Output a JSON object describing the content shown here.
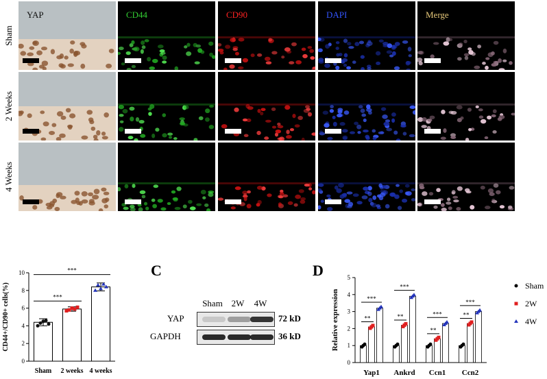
{
  "panel_a": {
    "columns": [
      "YAP",
      "CD44",
      "CD90",
      "DAPI",
      "Merge"
    ],
    "column_colors": [
      "#111111",
      "#33cc33",
      "#ff2222",
      "#3355ff",
      "#e6c87a"
    ],
    "rows": [
      "Sham",
      "2 Weeks",
      "4 Weeks"
    ]
  },
  "panel_b": {
    "letter": "",
    "chart_data": {
      "type": "bar",
      "categories": [
        "Sham",
        "2 weeks",
        "4 weeks"
      ],
      "values": [
        4.4,
        5.9,
        8.4
      ],
      "errors": [
        0.4,
        0.25,
        0.45
      ],
      "points": [
        [
          4.0,
          4.3,
          4.5,
          4.6,
          4.2
        ],
        [
          5.7,
          5.8,
          6.0,
          5.9,
          6.1
        ],
        [
          8.0,
          8.6,
          8.2,
          8.7,
          8.4
        ]
      ],
      "point_colors": [
        "#111111",
        "#e02020",
        "#2233bb"
      ],
      "ylabel": "CD44+/CD90+ cells(%)",
      "ylim": [
        0,
        10
      ],
      "yticks": [
        "0",
        "2",
        "4",
        "6",
        "8",
        "10"
      ],
      "significance": [
        {
          "from": 0,
          "to": 1,
          "label": "***"
        },
        {
          "from": 0,
          "to": 2,
          "label": "***"
        }
      ]
    }
  },
  "panel_c": {
    "letter": "C",
    "lanes": [
      "Sham",
      "2W",
      "4W"
    ],
    "bands": [
      {
        "name": "YAP",
        "size": "72 kD",
        "intensity": [
          0.15,
          0.35,
          0.85
        ]
      },
      {
        "name": "GAPDH",
        "size": "36 kD",
        "intensity": [
          0.9,
          0.9,
          0.9
        ]
      }
    ]
  },
  "panel_d": {
    "letter": "D",
    "chart_data": {
      "type": "bar",
      "categories": [
        "Yap1",
        "Ankrd",
        "Ccn1",
        "Ccn2"
      ],
      "series": [
        {
          "name": "Sham",
          "values": [
            1.0,
            1.0,
            1.0,
            1.0
          ],
          "color": "#000000",
          "marker": "circle"
        },
        {
          "name": "2W",
          "values": [
            2.1,
            2.2,
            1.4,
            2.3
          ],
          "color": "#e02020",
          "marker": "square"
        },
        {
          "name": "4W",
          "values": [
            3.2,
            3.9,
            2.3,
            3.0
          ],
          "color": "#2233bb",
          "marker": "triangle"
        }
      ],
      "ylabel": "Relative expression",
      "ylim": [
        0,
        5
      ],
      "yticks": [
        "0",
        "1",
        "2",
        "3",
        "4",
        "5"
      ],
      "significance": [
        {
          "category": 0,
          "from": 0,
          "to": 1,
          "label": "**"
        },
        {
          "category": 0,
          "from": 0,
          "to": 2,
          "label": "***"
        },
        {
          "category": 1,
          "from": 0,
          "to": 1,
          "label": "**"
        },
        {
          "category": 1,
          "from": 0,
          "to": 2,
          "label": "***"
        },
        {
          "category": 2,
          "from": 0,
          "to": 1,
          "label": "**"
        },
        {
          "category": 2,
          "from": 0,
          "to": 2,
          "label": "***"
        },
        {
          "category": 3,
          "from": 0,
          "to": 1,
          "label": "**"
        },
        {
          "category": 3,
          "from": 0,
          "to": 2,
          "label": "***"
        }
      ],
      "legend": "right"
    }
  }
}
